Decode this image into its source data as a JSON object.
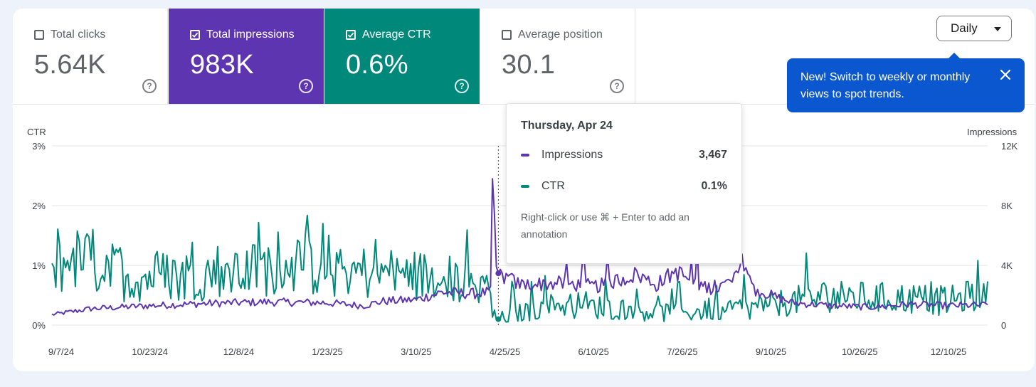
{
  "metrics": [
    {
      "label": "Total clicks",
      "value": "5.64K",
      "checked": false,
      "color": "#ffffff"
    },
    {
      "label": "Total impressions",
      "value": "983K",
      "checked": true,
      "color": "#5e35b1"
    },
    {
      "label": "Average CTR",
      "value": "0.6%",
      "checked": true,
      "color": "#00897b"
    },
    {
      "label": "Average position",
      "value": "30.1",
      "checked": false,
      "color": "#ffffff"
    }
  ],
  "help_glyph": "?",
  "period_select": {
    "value": "Daily"
  },
  "banner": {
    "text": "New! Switch to weekly or monthly views to spot trends."
  },
  "tooltip": {
    "date": "Thursday, Apr 24",
    "rows": [
      {
        "name": "Impressions",
        "value": "3,467",
        "color": "#5e35b1"
      },
      {
        "name": "CTR",
        "value": "0.1%",
        "color": "#00897b"
      }
    ],
    "note": "Right-click or use ⌘ + Enter to add an annotation"
  },
  "chart_data": {
    "type": "line",
    "left_axis": {
      "title": "CTR",
      "ticks": [
        "3%",
        "2%",
        "1%",
        "0%"
      ],
      "range": [
        0,
        3
      ]
    },
    "right_axis": {
      "title": "Impressions",
      "ticks": [
        "12K",
        "8K",
        "4K",
        "0"
      ],
      "range": [
        0,
        12000
      ]
    },
    "x_tick_labels": [
      "9/7/24",
      "10/23/24",
      "12/8/24",
      "1/23/25",
      "3/10/25",
      "4/25/25",
      "6/10/25",
      "7/26/25",
      "9/10/25",
      "10/26/25",
      "12/10/25"
    ],
    "x_range": [
      "9/7/24",
      "12/31/25"
    ],
    "hover_index": 229,
    "series": [
      {
        "name": "Impressions",
        "axis": "right",
        "color": "#5e35b1",
        "anchors": [
          [
            0,
            700
          ],
          [
            20,
            1100
          ],
          [
            50,
            1300
          ],
          [
            80,
            1450
          ],
          [
            110,
            1550
          ],
          [
            140,
            1500
          ],
          [
            160,
            1300
          ],
          [
            170,
            1600
          ],
          [
            187,
            1700
          ],
          [
            200,
            2200
          ],
          [
            215,
            2100
          ],
          [
            225,
            2200
          ],
          [
            226,
            9800
          ],
          [
            228,
            3700
          ],
          [
            229,
            3467
          ],
          [
            240,
            2700
          ],
          [
            260,
            2800
          ],
          [
            280,
            2600
          ],
          [
            300,
            3400
          ],
          [
            310,
            2700
          ],
          [
            320,
            3600
          ],
          [
            330,
            2800
          ],
          [
            340,
            2400
          ],
          [
            350,
            3000
          ],
          [
            355,
            4400
          ],
          [
            360,
            2400
          ],
          [
            380,
            1500
          ],
          [
            400,
            1300
          ],
          [
            420,
            1200
          ],
          [
            440,
            1400
          ],
          [
            460,
            1300
          ],
          [
            480,
            1350
          ]
        ]
      },
      {
        "name": "CTR",
        "axis": "left",
        "color": "#00897b",
        "anchors": [
          [
            0,
            1.0
          ],
          [
            15,
            1.1
          ],
          [
            40,
            0.8
          ],
          [
            70,
            0.85
          ],
          [
            100,
            0.9
          ],
          [
            120,
            1.05
          ],
          [
            150,
            0.9
          ],
          [
            180,
            0.85
          ],
          [
            200,
            0.8
          ],
          [
            225,
            0.6
          ],
          [
            226,
            0.15
          ],
          [
            229,
            0.1
          ],
          [
            240,
            0.2
          ],
          [
            260,
            0.35
          ],
          [
            280,
            0.3
          ],
          [
            300,
            0.25
          ],
          [
            320,
            0.2
          ],
          [
            340,
            0.25
          ],
          [
            360,
            0.3
          ],
          [
            380,
            0.4
          ],
          [
            400,
            0.5
          ],
          [
            420,
            0.45
          ],
          [
            440,
            0.45
          ],
          [
            460,
            0.4
          ],
          [
            480,
            0.55
          ]
        ]
      }
    ]
  }
}
